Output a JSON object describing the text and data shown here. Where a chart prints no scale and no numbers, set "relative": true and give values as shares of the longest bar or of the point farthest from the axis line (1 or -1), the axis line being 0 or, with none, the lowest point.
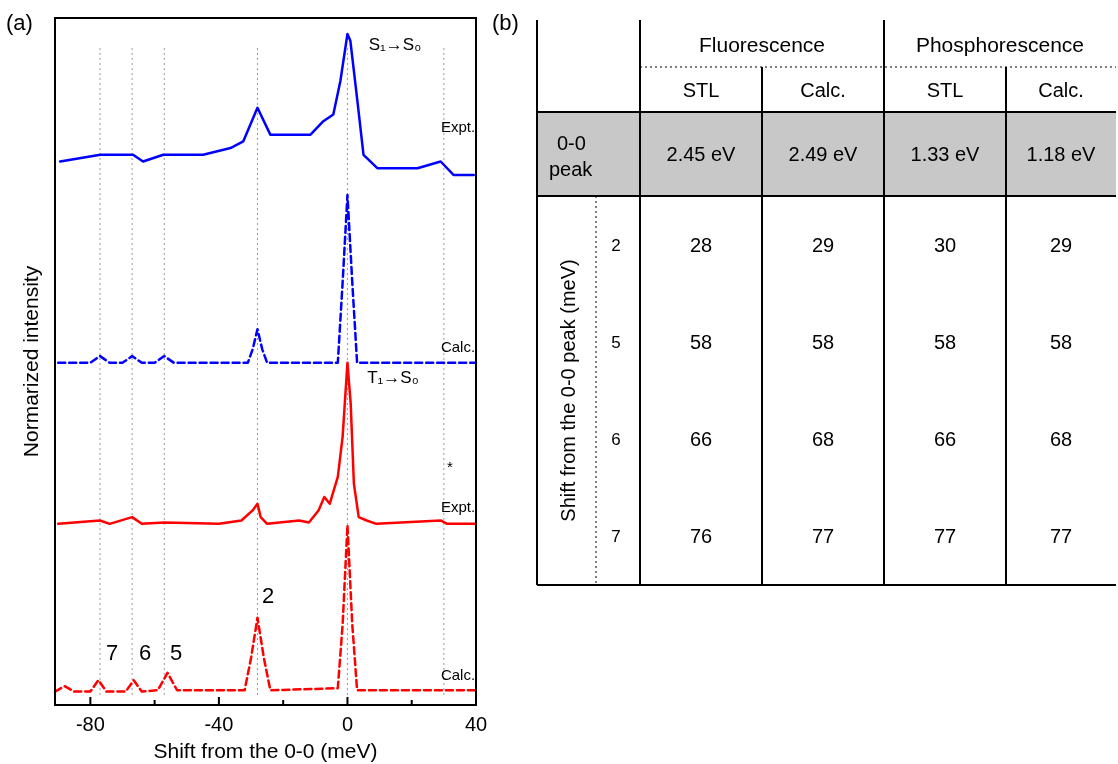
{
  "chart_data": [
    {
      "type": "line",
      "relative": true,
      "xlabel": "Shift from the 0-0 (meV)",
      "ylabel": "Normarized intensity",
      "xlim": [
        -91,
        40
      ],
      "xticks": [
        -80,
        {
          "value": -60,
          "label": null
        },
        -40,
        {
          "value": -20,
          "label": null
        },
        0,
        {
          "value": 20,
          "label": null
        },
        40
      ],
      "tick_labels": "x",
      "grid": false,
      "marker": "none",
      "series": [
        {
          "color": "#0000ff",
          "line_style": "solid",
          "x": [
            -89.4,
            -76.9,
            -66.7,
            -63.6,
            -57.3,
            -44.9,
            -36.4,
            -32.4,
            -28,
            -24,
            -17.8,
            -11.5,
            -7.5,
            -4.4,
            -2.2,
            0,
            0.9,
            3.1,
            5,
            9.3,
            21.8,
            29,
            33,
            39.3
          ],
          "values": [
            0.81,
            0.82,
            0.82,
            0.81,
            0.82,
            0.82,
            0.83,
            0.84,
            0.89,
            0.85,
            0.85,
            0.85,
            0.87,
            0.88,
            0.93,
            1,
            0.99,
            0.9,
            0.82,
            0.8,
            0.8,
            0.81,
            0.79,
            0.79
          ]
        },
        {
          "color": "#0000ff",
          "line_style": "dashed",
          "x": [
            -90,
            -80,
            -77,
            -74,
            -70,
            -67,
            -64,
            -60,
            -57,
            -54,
            -31,
            -29.5,
            -28,
            -26.5,
            -25,
            -3,
            -1.5,
            0,
            1.5,
            3,
            40
          ],
          "values": [
            0.51,
            0.51,
            0.52,
            0.51,
            0.51,
            0.52,
            0.51,
            0.51,
            0.52,
            0.51,
            0.51,
            0.53,
            0.56,
            0.53,
            0.51,
            0.51,
            0.63,
            0.76,
            0.63,
            0.51,
            0.51
          ]
        },
        {
          "color": "#ff0000",
          "line_style": "solid",
          "x": [
            -90,
            -77,
            -74,
            -67,
            -64,
            -57,
            -40,
            -33,
            -29.5,
            -28,
            -27,
            -25,
            -15,
            -12,
            -9,
            -7.2,
            -5.5,
            -3,
            -1.5,
            0,
            1,
            2,
            3.5,
            6,
            9,
            29,
            31,
            40
          ],
          "values": [
            0.27,
            0.275,
            0.27,
            0.28,
            0.27,
            0.272,
            0.27,
            0.275,
            0.29,
            0.3,
            0.28,
            0.27,
            0.275,
            0.272,
            0.29,
            0.31,
            0.3,
            0.34,
            0.4,
            0.51,
            0.45,
            0.33,
            0.28,
            0.275,
            0.27,
            0.275,
            0.27,
            0.27
          ]
        },
        {
          "color": "#ff0000",
          "line_style": "dashed",
          "x": [
            -91,
            -88,
            -85,
            -80,
            -77.5,
            -75,
            -69,
            -66.5,
            -64,
            -59,
            -56,
            -53,
            -32,
            -30,
            -28,
            -26,
            -24,
            -3,
            -1.5,
            0,
            1.5,
            3,
            40
          ],
          "values": [
            0.02,
            0.028,
            0.02,
            0.02,
            0.037,
            0.02,
            0.02,
            0.037,
            0.02,
            0.022,
            0.048,
            0.022,
            0.022,
            0.07,
            0.13,
            0.07,
            0.022,
            0.025,
            0.12,
            0.268,
            0.12,
            0.022,
            0.022
          ]
        }
      ],
      "ref_lines": [
        {
          "axis": "x",
          "value": -77,
          "color": "#999999",
          "line_style": "dotted"
        },
        {
          "axis": "x",
          "value": -67,
          "color": "#999999",
          "line_style": "dotted"
        },
        {
          "axis": "x",
          "value": -57,
          "color": "#999999",
          "line_style": "dotted"
        },
        {
          "axis": "x",
          "value": -28,
          "color": "#999999",
          "line_style": "dotted"
        },
        {
          "axis": "x",
          "value": 0,
          "color": "#999999",
          "line_style": "dotted"
        },
        {
          "axis": "x",
          "value": 30,
          "color": "#999999",
          "line_style": "dotted"
        }
      ],
      "annotations": [
        "(a)",
        "S₁→S₀",
        "Expt.",
        "Calc.",
        "T₁→S₀",
        "*",
        "Expt.",
        "Calc.",
        "2",
        "7 6 5"
      ]
    },
    {
      "type": "other",
      "annotations": [
        "(b)",
        "Fluorescence",
        "Phosphorescence",
        "Shift from the 0-0 peak (meV)"
      ],
      "categories": [
        "STL",
        "Calc.",
        "STL",
        "Calc."
      ],
      "y_categories": [
        "0-0 peak",
        "2",
        "5",
        "6",
        "7"
      ],
      "cell_labels": [
        [
          "2.45 eV",
          "2.49 eV",
          "1.33 eV",
          "1.18 eV"
        ],
        [
          "28",
          "29",
          "30",
          "29"
        ],
        [
          "58",
          "58",
          "58",
          "58"
        ],
        [
          "66",
          "68",
          "66",
          "68"
        ],
        [
          "76",
          "77",
          "77",
          "77"
        ]
      ]
    }
  ]
}
